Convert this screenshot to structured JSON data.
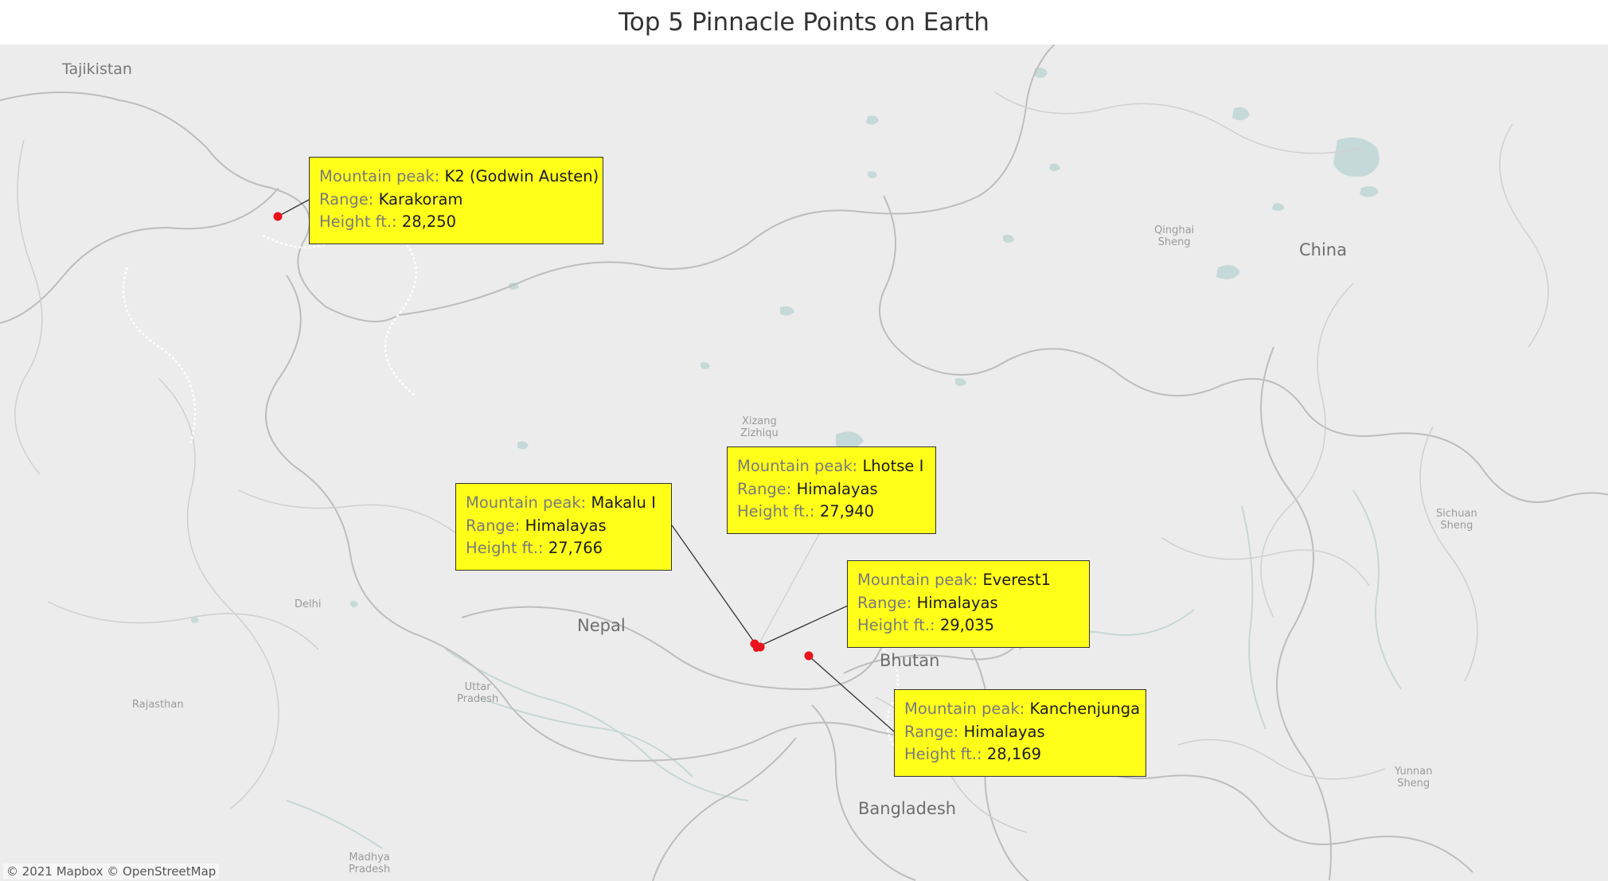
{
  "title": "Top 5 Pinnacle Points on Earth",
  "map": {
    "attribution": "© 2021 Mapbox © OpenStreetMap",
    "colors": {
      "land": "#ececec",
      "border": "#bdbdbd",
      "water": "#c5d9d8",
      "marker": "#e8131b",
      "callout": "#ffff1a"
    },
    "places": {
      "tajikistan": "Tajikistan",
      "china": "China",
      "nepal": "Nepal",
      "bhutan": "Bhutan",
      "bangladesh": "Bangladesh",
      "qinghai": [
        "Qinghai",
        "Sheng"
      ],
      "xizang": [
        "Xizang",
        "Zizhiqu"
      ],
      "sichuan": [
        "Sichuan",
        "Sheng"
      ],
      "yunnan": [
        "Yunnan",
        "Sheng"
      ],
      "uttar": [
        "Uttar",
        "Pradesh"
      ],
      "madhya": [
        "Madhya",
        "Pradesh"
      ],
      "rajasthan": "Rajasthan",
      "delhi": "Delhi"
    }
  },
  "field_labels": {
    "peak": "Mountain peak:",
    "range": "Range:",
    "height": "Height ft.:"
  },
  "peaks": [
    {
      "name": "K2 (Godwin Austen)",
      "range": "Karakoram",
      "height": "28,250"
    },
    {
      "name": "Makalu I",
      "range": "Himalayas",
      "height": "27,766"
    },
    {
      "name": "Lhotse I",
      "range": "Himalayas",
      "height": "27,940"
    },
    {
      "name": "Everest1",
      "range": "Himalayas",
      "height": "29,035"
    },
    {
      "name": "Kanchenjunga",
      "range": "Himalayas",
      "height": "28,169"
    }
  ]
}
